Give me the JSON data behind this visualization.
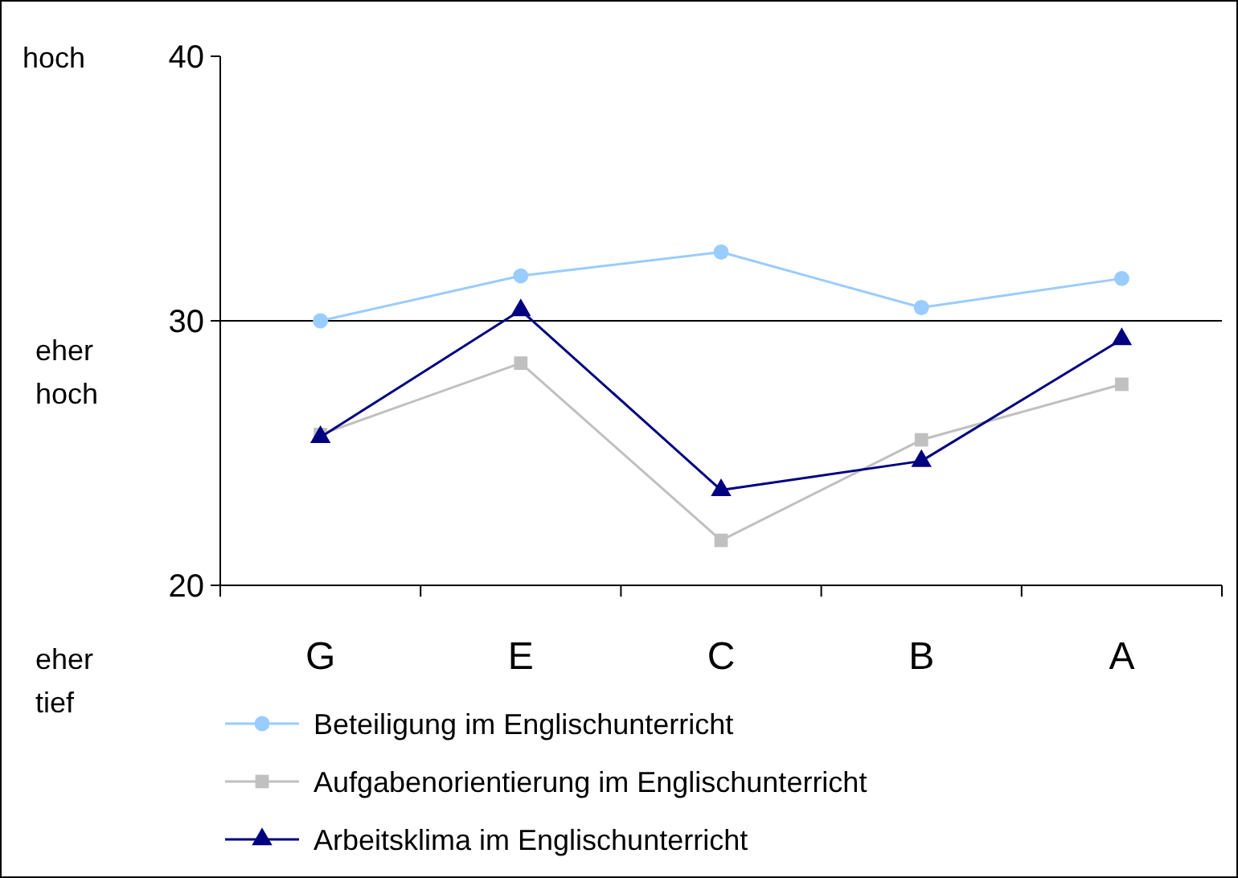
{
  "chart_data": {
    "type": "line",
    "categories": [
      "G",
      "E",
      "C",
      "B",
      "A"
    ],
    "ylim": [
      20,
      40
    ],
    "yticks": [
      20,
      30,
      40
    ],
    "legend": "bottom",
    "series": [
      {
        "name": "Beteiligung im Englischunterricht",
        "color": "#99ccff",
        "marker": "circle",
        "values": [
          30.0,
          31.7,
          32.6,
          30.5,
          31.6
        ]
      },
      {
        "name": "Aufgabenorientierung im Englischunterricht",
        "color": "#c0c0c0",
        "marker": "square",
        "values": [
          25.7,
          28.4,
          21.7,
          25.5,
          27.6
        ]
      },
      {
        "name": "Arbeitsklima im Englischunterricht",
        "color": "#000080",
        "marker": "triangle",
        "values": [
          25.6,
          30.4,
          23.6,
          24.7,
          29.3
        ]
      }
    ],
    "ref_lines": [
      {
        "axis": "y",
        "value": 30,
        "color": "#000000"
      }
    ],
    "annotations": [
      "hoch",
      "eher hoch",
      "eher tief"
    ]
  }
}
